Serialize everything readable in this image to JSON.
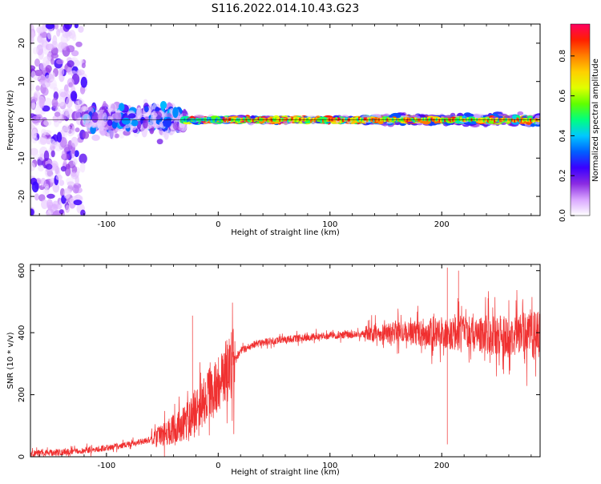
{
  "title": "S116.2022.014.10.43.G23",
  "chart_data": [
    {
      "type": "heatmap",
      "xlabel": "Height of straight line (km)",
      "ylabel": "Frequency (Hz)",
      "xlim": [
        -168,
        288
      ],
      "ylim": [
        -25,
        25
      ],
      "x_ticks": [
        -100,
        0,
        100,
        200
      ],
      "y_ticks": [
        -20,
        -10,
        0,
        10,
        20
      ],
      "colorbar": {
        "label": "Normalized spectral amplitude",
        "ticks": [
          0.0,
          0.2,
          0.4,
          0.6,
          0.8
        ],
        "range": [
          0,
          0.96
        ],
        "colors": [
          "#ffffff",
          "#d9a6ff",
          "#8a2be2",
          "#3a00ff",
          "#0060ff",
          "#00c8ff",
          "#00ff80",
          "#60ff00",
          "#e0ff00",
          "#ffd000",
          "#ff8000",
          "#ff2000",
          "#ff0060"
        ]
      },
      "regions": [
        {
          "x_range": [
            -168,
            -120
          ],
          "freq_spread_hz": 25,
          "max_amplitude": 0.25
        },
        {
          "x_range": [
            -120,
            -30
          ],
          "freq_spread_hz": 9,
          "max_amplitude": 0.4
        },
        {
          "x_range": [
            -30,
            130
          ],
          "freq_spread_hz": 1.5,
          "max_amplitude": 0.96
        },
        {
          "x_range": [
            130,
            288
          ],
          "freq_spread_hz": 3,
          "max_amplitude": 0.96
        }
      ]
    },
    {
      "type": "line",
      "xlabel": "Height of straight line (km)",
      "ylabel": "SNR (10 * v/v)",
      "xlim": [
        -168,
        288
      ],
      "ylim": [
        0,
        620
      ],
      "x_ticks": [
        -100,
        0,
        100,
        200
      ],
      "y_ticks": [
        0,
        200,
        400,
        600
      ],
      "series_color": "#f03030",
      "trend": {
        "x": [
          -168,
          -140,
          -120,
          -100,
          -80,
          -60,
          -45,
          -30,
          -20,
          -10,
          0,
          10,
          20,
          30,
          50,
          80,
          100,
          130,
          160,
          200,
          230,
          260,
          288
        ],
        "y": [
          10,
          15,
          20,
          28,
          40,
          55,
          80,
          110,
          150,
          190,
          230,
          290,
          340,
          360,
          375,
          385,
          390,
          395,
          400,
          400,
          395,
          390,
          390
        ]
      },
      "spikes": [
        {
          "x": -23,
          "y": 455
        },
        {
          "x": 205,
          "y": 40
        },
        {
          "x": 205,
          "y": 610
        },
        {
          "x": 215,
          "y": 600
        }
      ]
    }
  ]
}
